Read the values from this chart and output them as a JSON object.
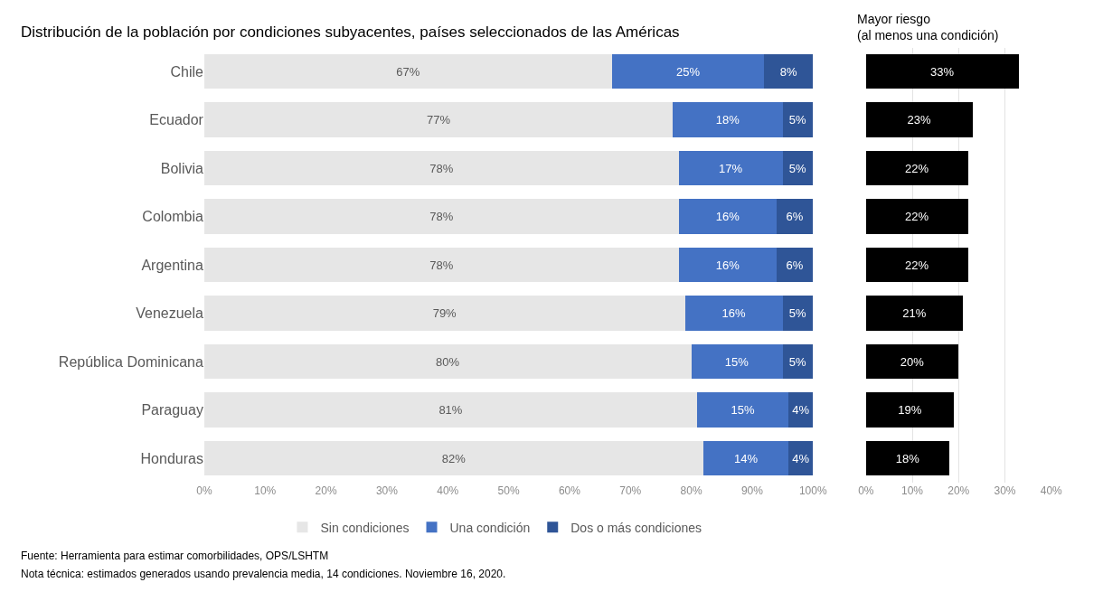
{
  "chart_data": [
    {
      "type": "bar",
      "orientation": "horizontal",
      "stacked": true,
      "legend": "bottom",
      "title": "Distribución de la población por condiciones subyacentes, países seleccionados de las Américas",
      "categories": [
        "Chile",
        "Ecuador",
        "Bolivia",
        "Colombia",
        "Argentina",
        "Venezuela",
        "República Dominicana",
        "Paraguay",
        "Honduras"
      ],
      "series": [
        {
          "name": "Sin condiciones",
          "color": "#e6e6e6",
          "values": [
            67,
            77,
            78,
            78,
            78,
            79,
            80,
            81,
            82
          ],
          "value_labels": [
            "67%",
            "77%",
            "78%",
            "78%",
            "78%",
            "79%",
            "80%",
            "81%",
            "82%"
          ]
        },
        {
          "name": "Una condición",
          "color": "#4472c4",
          "values": [
            25,
            18,
            17,
            16,
            16,
            16,
            15,
            15,
            14
          ],
          "value_labels": [
            "25%",
            "18%",
            "17%",
            "16%",
            "16%",
            "16%",
            "15%",
            "15%",
            "14%"
          ]
        },
        {
          "name": "Dos o más condiciones",
          "color": "#2f5597",
          "values": [
            8,
            5,
            5,
            6,
            6,
            5,
            5,
            4,
            4
          ],
          "value_labels": [
            "8%",
            "5%",
            "5%",
            "6%",
            "6%",
            "5%",
            "5%",
            "4%",
            "4%"
          ]
        }
      ],
      "xlim": [
        0,
        100
      ],
      "xticks": [
        {
          "value": 0,
          "label": "0%"
        },
        {
          "value": 10,
          "label": "10%"
        },
        {
          "value": 20,
          "label": "20%"
        },
        {
          "value": 30,
          "label": "30%"
        },
        {
          "value": 40,
          "label": "40%"
        },
        {
          "value": 50,
          "label": "50%"
        },
        {
          "value": 60,
          "label": "60%"
        },
        {
          "value": 70,
          "label": "70%"
        },
        {
          "value": 80,
          "label": "80%"
        },
        {
          "value": 90,
          "label": "90%"
        },
        {
          "value": 100,
          "label": "100%"
        }
      ],
      "annotations": [
        "Fuente: Herramienta para estimar comorbilidades, OPS/LSHTM",
        "Nota técnica: estimados generados usando prevalencia media, 14 condiciones. Noviembre 16, 2020."
      ]
    },
    {
      "type": "bar",
      "orientation": "horizontal",
      "grid": "x",
      "tick_labels": "x",
      "title": "Mayor riesgo\n(al menos una condición)",
      "categories": [
        null,
        null,
        null,
        null,
        null,
        null,
        null,
        null,
        null
      ],
      "series": [
        {
          "color": "#000000",
          "values": [
            33,
            23,
            22,
            22,
            22,
            21,
            20,
            19,
            18
          ],
          "value_labels": [
            "33%",
            "23%",
            "22%",
            "22%",
            "22%",
            "21%",
            "20%",
            "19%",
            "18%"
          ]
        }
      ],
      "xlim": [
        0,
        40
      ],
      "xticks": [
        {
          "value": 0,
          "label": "0%"
        },
        {
          "value": 10,
          "label": "10%"
        },
        {
          "value": 20,
          "label": "20%"
        },
        {
          "value": 30,
          "label": "30%"
        },
        {
          "value": 40,
          "label": "40%"
        }
      ]
    }
  ]
}
